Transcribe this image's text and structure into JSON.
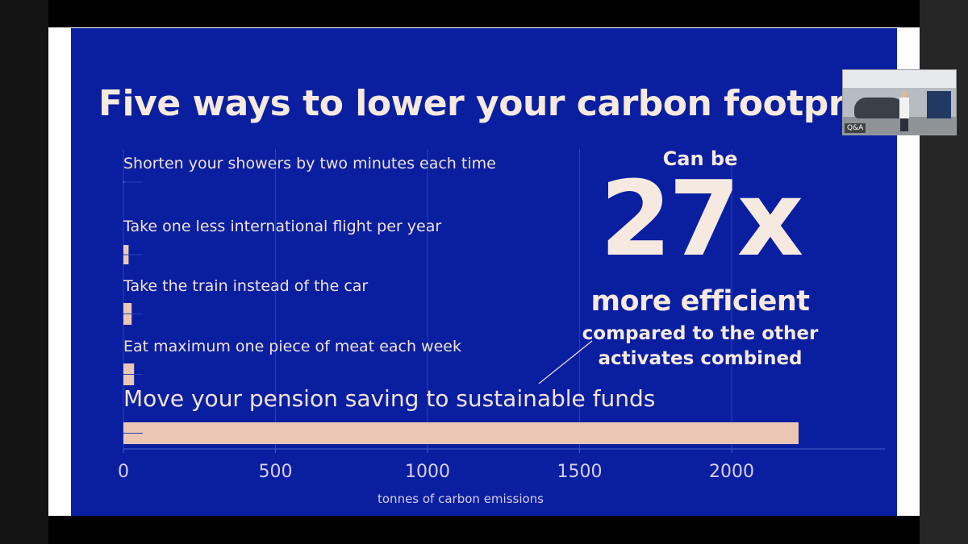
{
  "slide": {
    "title": "Five ways to lower your carbon footprint",
    "callout": {
      "pre": "Can be",
      "big": "27x",
      "mid": "more efficient",
      "sub_line1": "compared to the other",
      "sub_line2": "activates combined"
    }
  },
  "video_overlay": {
    "label": "Q&A"
  },
  "colors": {
    "slide_background": "#0a1fa0",
    "bar": "#ebc6b5",
    "text": "#f6e9df"
  },
  "chart_data": {
    "type": "bar",
    "orientation": "horizontal",
    "categories": [
      "Shorten your showers by two minutes each time",
      "Take one less international flight per year",
      "Take the train instead of the car",
      "Eat maximum one piece of meat each week",
      "Move your pension saving to sustainable funds"
    ],
    "values": [
      1,
      17,
      27,
      35,
      2220
    ],
    "xlabel": "tonnes of carbon emissions",
    "xlim": [
      0,
      2500
    ],
    "xticks": [
      0,
      500,
      1000,
      1500,
      2000
    ],
    "grid": true
  }
}
